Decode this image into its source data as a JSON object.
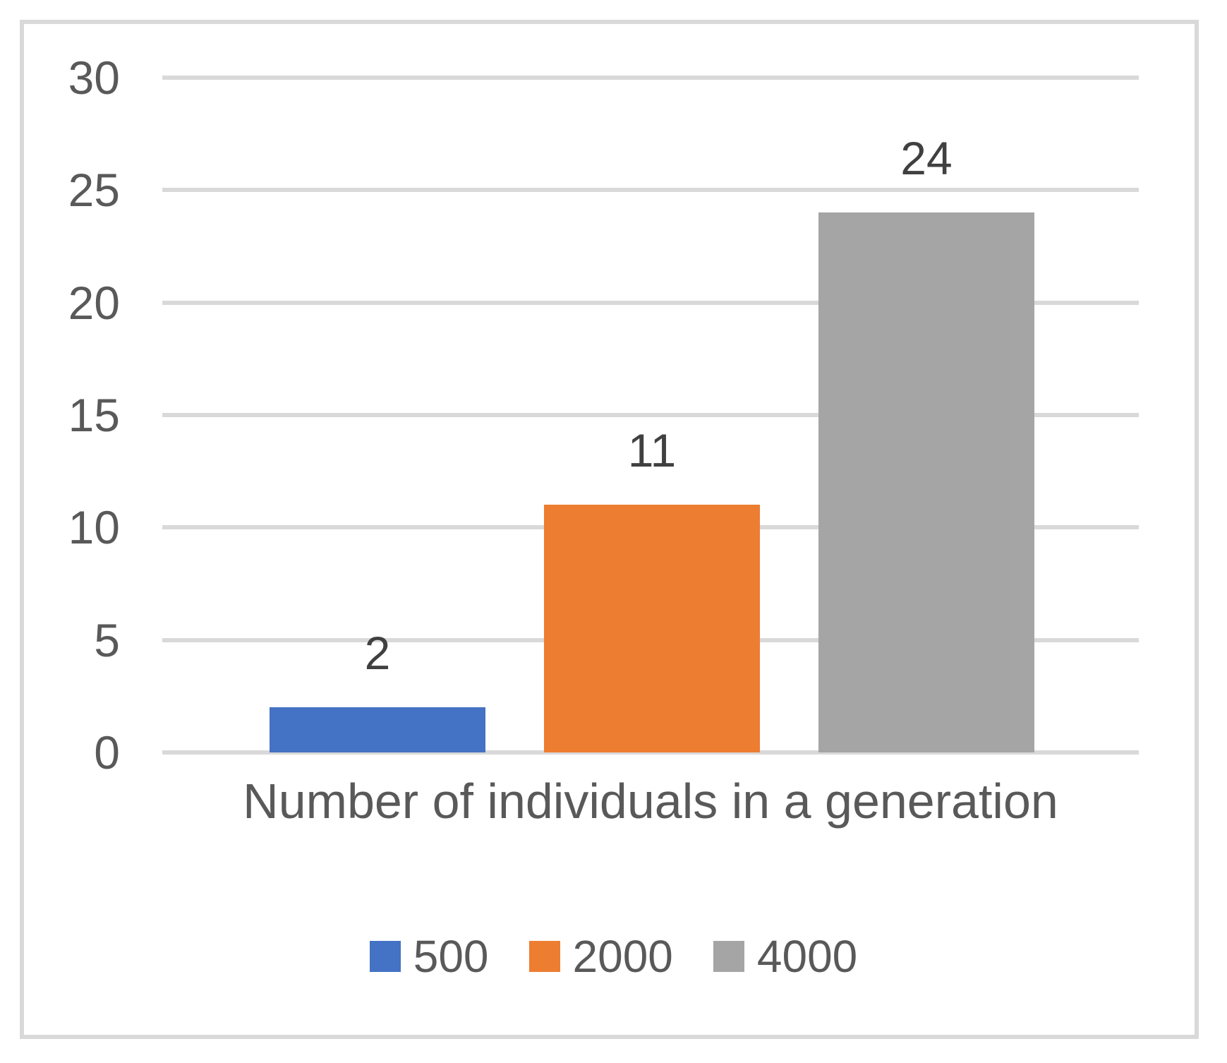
{
  "chart_data": {
    "type": "bar",
    "title": "",
    "xlabel": "Number of individuals in a generation",
    "ylabel": "",
    "ylim": [
      0,
      30
    ],
    "y_ticks": [
      0,
      5,
      10,
      15,
      20,
      25,
      30
    ],
    "grid": true,
    "legend_position": "bottom-center",
    "categories": [
      "Number of individuals in a generation"
    ],
    "series": [
      {
        "name": "500",
        "values": [
          2
        ],
        "color": "#4472C4",
        "data_label": "2"
      },
      {
        "name": "2000",
        "values": [
          11
        ],
        "color": "#ED7D31",
        "data_label": "11"
      },
      {
        "name": "4000",
        "values": [
          24
        ],
        "color": "#A5A5A5",
        "data_label": "24"
      }
    ]
  },
  "colors": {
    "gridline": "#D9D9D9",
    "chart_border": "#D9D9D9",
    "axis_text": "#595959",
    "data_label_text": "#404040"
  }
}
